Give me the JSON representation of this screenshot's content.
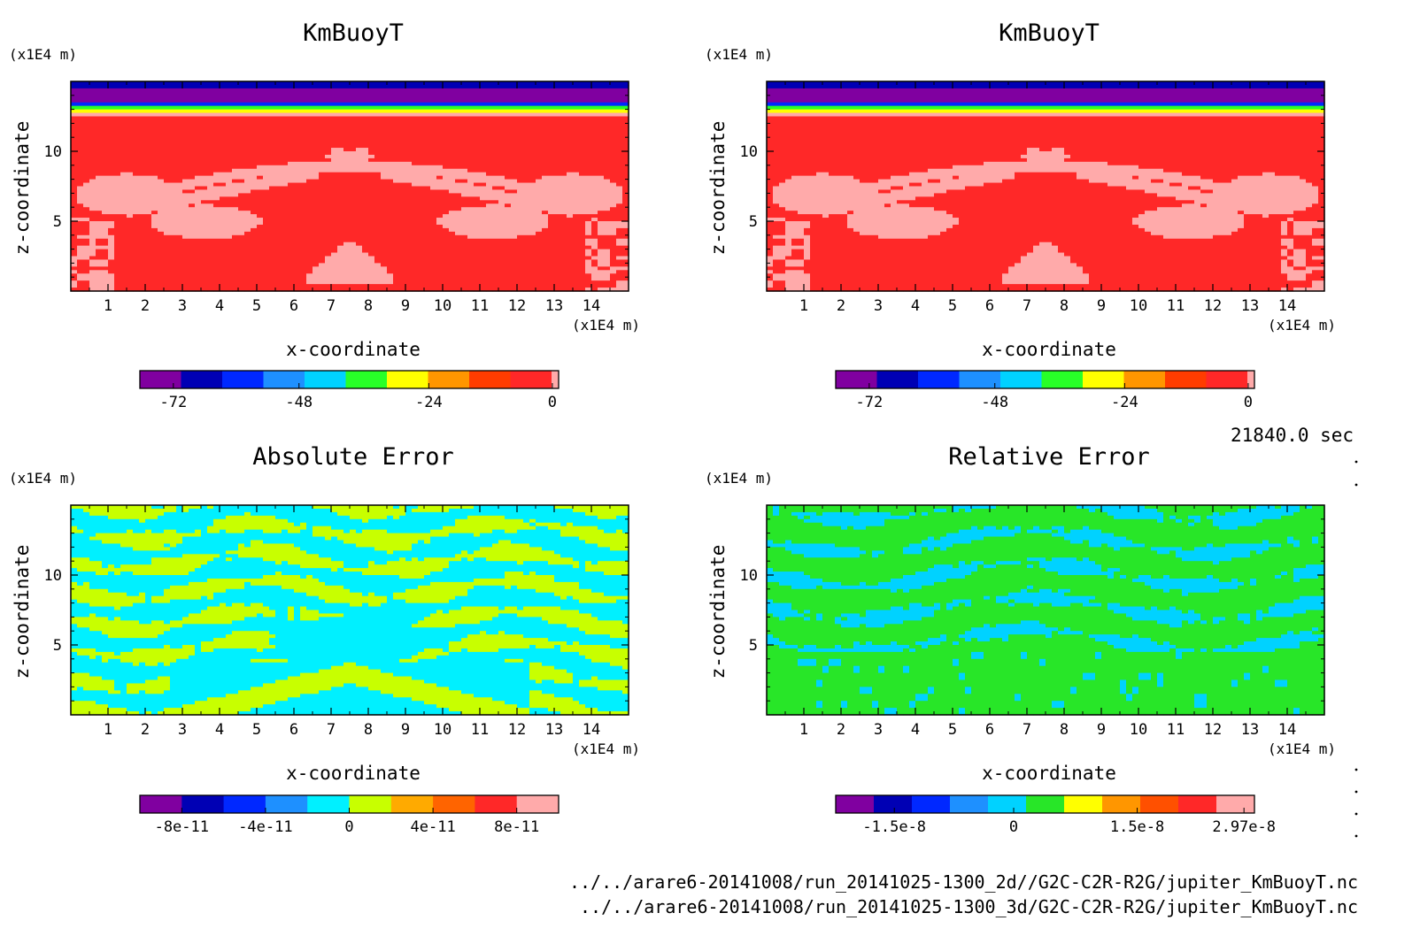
{
  "time_label": "21840.0 sec",
  "file_lines": [
    "../../arare6-20141008/run_20141025-1300_2d//G2C-C2R-R2G/jupiter_KmBuoyT.nc",
    "../../arare6-20141008/run_20141025-1300_3d/G2C-C2R-R2G/jupiter_KmBuoyT.nc"
  ],
  "chart_data": [
    {
      "type": "heatmap",
      "title": "KmBuoyT",
      "xlabel": "x-coordinate",
      "ylabel": "z-coordinate",
      "x_unit": "(x1E4 m)",
      "y_unit": "(x1E4 m)",
      "xticks": [
        "1",
        "2",
        "3",
        "4",
        "5",
        "6",
        "7",
        "8",
        "9",
        "10",
        "11",
        "12",
        "13",
        "14"
      ],
      "yticks": [
        "5",
        "10"
      ],
      "xlim": [
        0,
        15
      ],
      "ylim": [
        0,
        15
      ],
      "field": "kmbuoy",
      "colorbar": {
        "colors": [
          "#8000a0",
          "#0000b4",
          "#0028ff",
          "#1e90ff",
          "#00d2ff",
          "#28ff28",
          "#ffff00",
          "#ff9600",
          "#ff3c00",
          "#ff2828",
          "#ffaaaa"
        ],
        "labels": [
          "-72",
          "-48",
          "-24",
          "0"
        ]
      }
    },
    {
      "type": "heatmap",
      "title": "KmBuoyT",
      "xlabel": "x-coordinate",
      "ylabel": "z-coordinate",
      "x_unit": "(x1E4 m)",
      "y_unit": "(x1E4 m)",
      "xticks": [
        "1",
        "2",
        "3",
        "4",
        "5",
        "6",
        "7",
        "8",
        "9",
        "10",
        "11",
        "12",
        "13",
        "14"
      ],
      "yticks": [
        "5",
        "10"
      ],
      "xlim": [
        0,
        15
      ],
      "ylim": [
        0,
        15
      ],
      "field": "kmbuoy",
      "colorbar": {
        "colors": [
          "#8000a0",
          "#0000b4",
          "#0028ff",
          "#1e90ff",
          "#00d2ff",
          "#28ff28",
          "#ffff00",
          "#ff9600",
          "#ff3c00",
          "#ff2828",
          "#ffaaaa"
        ],
        "labels": [
          "-72",
          "-48",
          "-24",
          "0"
        ]
      }
    },
    {
      "type": "heatmap",
      "title": "Absolute Error",
      "xlabel": "x-coordinate",
      "ylabel": "z-coordinate",
      "x_unit": "(x1E4 m)",
      "y_unit": "(x1E4 m)",
      "xticks": [
        "1",
        "2",
        "3",
        "4",
        "5",
        "6",
        "7",
        "8",
        "9",
        "10",
        "11",
        "12",
        "13",
        "14"
      ],
      "yticks": [
        "5",
        "10"
      ],
      "xlim": [
        0,
        15
      ],
      "ylim": [
        0,
        15
      ],
      "field": "abs",
      "colorbar": {
        "colors": [
          "#8000a0",
          "#0000b4",
          "#0028ff",
          "#1e90ff",
          "#00f0ff",
          "#c8ff00",
          "#ffaa00",
          "#ff6400",
          "#ff2828",
          "#ffaaaa"
        ],
        "labels": [
          "-8e-11",
          "-4e-11",
          "0",
          "4e-11",
          "8e-11"
        ]
      }
    },
    {
      "type": "heatmap",
      "title": "Relative Error",
      "xlabel": "x-coordinate",
      "ylabel": "z-coordinate",
      "x_unit": "(x1E4 m)",
      "y_unit": "(x1E4 m)",
      "xticks": [
        "1",
        "2",
        "3",
        "4",
        "5",
        "6",
        "7",
        "8",
        "9",
        "10",
        "11",
        "12",
        "13",
        "14"
      ],
      "yticks": [
        "5",
        "10"
      ],
      "xlim": [
        0,
        15
      ],
      "ylim": [
        0,
        15
      ],
      "field": "rel",
      "colorbar": {
        "colors": [
          "#8000a0",
          "#0000b4",
          "#0028ff",
          "#1e90ff",
          "#00d2ff",
          "#28e628",
          "#ffff00",
          "#ff9600",
          "#ff5000",
          "#ff2828",
          "#ffaaaa"
        ],
        "labels": [
          "-1.5e-8",
          "0",
          "1.5e-8",
          "2.97e-8"
        ]
      }
    }
  ]
}
